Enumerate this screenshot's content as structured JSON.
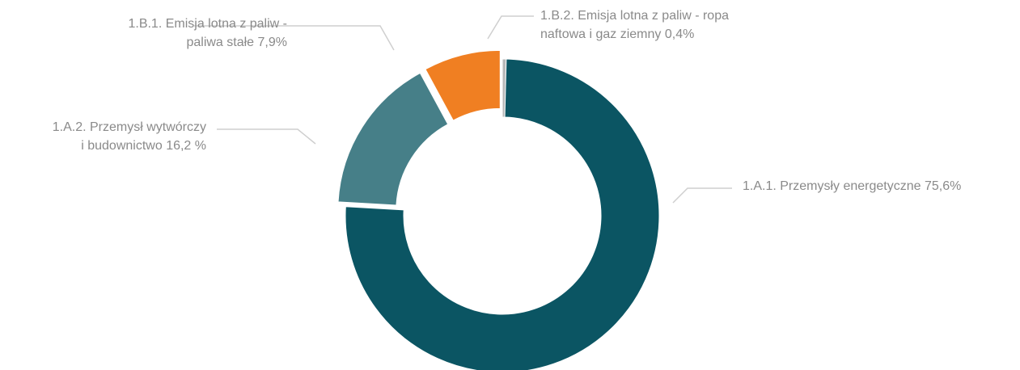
{
  "chart_data": {
    "type": "donut",
    "categories": [
      "1.B.2. Emisja lotna z paliw - ropa naftowa i gaz ziemny",
      "1.A.1. Przemysły energetyczne",
      "1.A.2. Przemysł wytwórczy i budownictwo",
      "1.B.1. Emisja lotna z paliw - paliwa stałe"
    ],
    "values": [
      0.4,
      75.6,
      16.2,
      7.9
    ],
    "value_labels": [
      "0,4%",
      "75,6%",
      "16,2 %",
      "7,9%"
    ],
    "colors": [
      "#b8b8b8",
      "#0b5563",
      "#467f88",
      "#f07f22"
    ],
    "exploded": [
      false,
      false,
      true,
      true
    ]
  }
}
